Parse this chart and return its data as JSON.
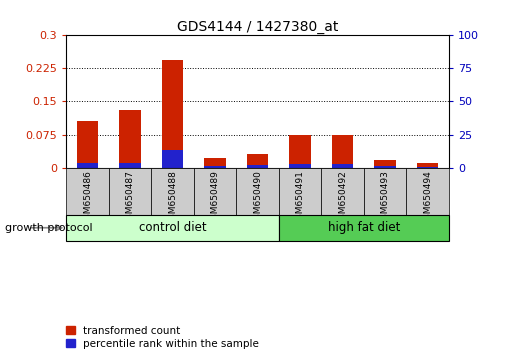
{
  "title": "GDS4144 / 1427380_at",
  "samples": [
    "GSM650486",
    "GSM650487",
    "GSM650488",
    "GSM650489",
    "GSM650490",
    "GSM650491",
    "GSM650492",
    "GSM650493",
    "GSM650494"
  ],
  "transformed_count": [
    0.105,
    0.13,
    0.245,
    0.022,
    0.03,
    0.073,
    0.073,
    0.018,
    0.01
  ],
  "percentile_rank": [
    3.2,
    3.2,
    13.5,
    0.9,
    1.8,
    2.7,
    2.7,
    1.3,
    0.6
  ],
  "left_ylim": [
    0,
    0.3
  ],
  "right_ylim": [
    0,
    100
  ],
  "left_yticks": [
    0,
    0.075,
    0.15,
    0.225,
    0.3
  ],
  "right_yticks": [
    0,
    25,
    50,
    75,
    100
  ],
  "bar_color_red": "#cc2200",
  "bar_color_blue": "#2222cc",
  "bg_color": "#ffffff",
  "control_label": "control diet",
  "high_fat_label": "high fat diet",
  "group_label": "growth protocol",
  "legend_red": "transformed count",
  "legend_blue": "percentile rank within the sample",
  "left_tick_color": "#cc2200",
  "right_tick_color": "#0000bb",
  "control_bg": "#ccffcc",
  "highfat_bg": "#55cc55",
  "sample_bg": "#cccccc",
  "bar_width": 0.5,
  "n_control": 5,
  "n_highfat": 4
}
